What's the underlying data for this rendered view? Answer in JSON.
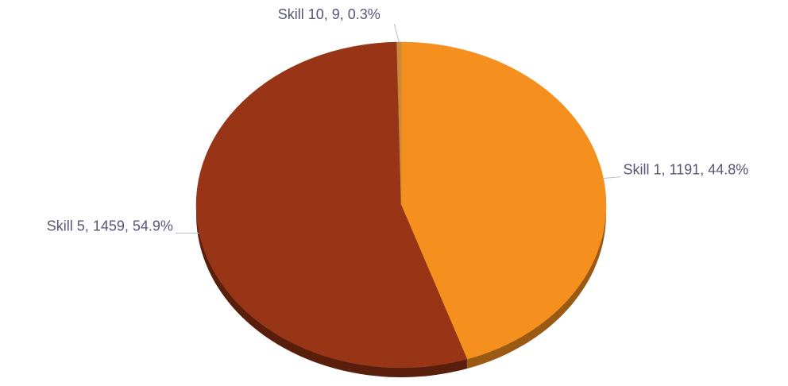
{
  "chart_data": {
    "type": "pie",
    "title": "",
    "style": "3d",
    "slices": [
      {
        "name": "Skill 1",
        "value": 1191,
        "percent": 44.8,
        "color": "#f5901e",
        "side_color": "#9a5a14",
        "label": "Skill 1, 1191, 44.8%"
      },
      {
        "name": "Skill 5",
        "value": 1459,
        "percent": 54.9,
        "color": "#973516",
        "side_color": "#5a1f0c",
        "label": "Skill 5, 1459, 54.9%"
      },
      {
        "name": "Skill 10",
        "value": 9,
        "percent": 0.3,
        "color": "#c8893c",
        "side_color": "#7a5020",
        "label": "Skill 10, 9, 0.3%"
      }
    ]
  }
}
